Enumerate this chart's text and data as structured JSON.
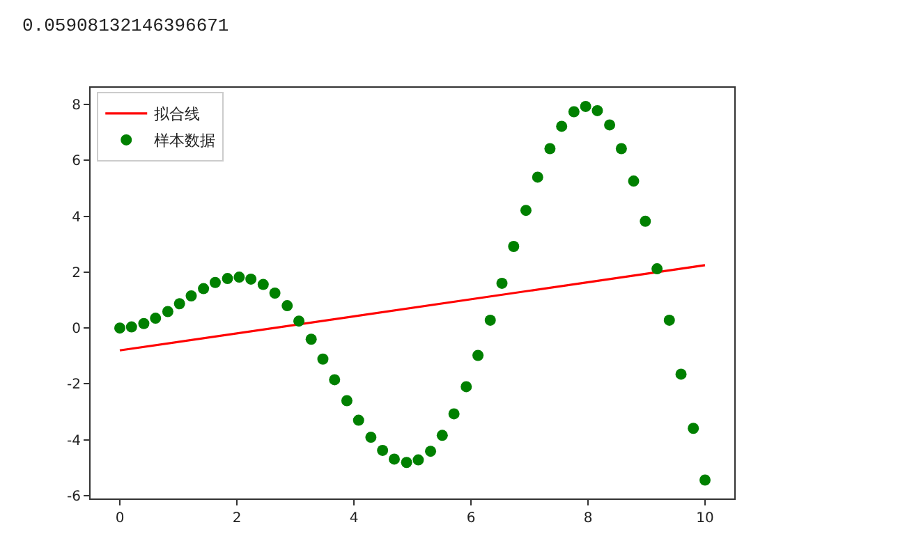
{
  "chart_data": {
    "type": "scatter",
    "annotations": [
      "0.05908132146396671"
    ],
    "xlim": [
      -0.5,
      10.5
    ],
    "ylim": [
      -6.1,
      8.6
    ],
    "xticks": [
      0,
      2,
      4,
      6,
      8,
      10
    ],
    "yticks": [
      -6,
      -4,
      -2,
      0,
      2,
      4,
      6,
      8
    ],
    "legend": "top left",
    "series": [
      {
        "name": "拟合线",
        "type": "line",
        "color": "#ff0000",
        "marker": "none",
        "line_style": "solid",
        "x": [
          0,
          10
        ],
        "values": [
          -0.8,
          2.25
        ]
      },
      {
        "name": "样本数据",
        "color": "#008000",
        "marker": "circle",
        "x": [
          0,
          0.2,
          0.41,
          0.61,
          0.82,
          1.02,
          1.22,
          1.43,
          1.63,
          1.84,
          2.04,
          2.24,
          2.45,
          2.65,
          2.86,
          3.06,
          3.27,
          3.47,
          3.67,
          3.88,
          4.08,
          4.29,
          4.49,
          4.69,
          4.9,
          5.1,
          5.31,
          5.51,
          5.71,
          5.92,
          6.12,
          6.33,
          6.53,
          6.73,
          6.94,
          7.14,
          7.35,
          7.55,
          7.76,
          7.96,
          8.16,
          8.37,
          8.57,
          8.78,
          8.98,
          9.18,
          9.39,
          9.59,
          9.8,
          10
        ],
        "values": [
          0,
          0.04,
          0.16,
          0.35,
          0.59,
          0.87,
          1.15,
          1.41,
          1.63,
          1.77,
          1.82,
          1.75,
          1.56,
          1.25,
          0.8,
          0.25,
          -0.4,
          -1.11,
          -1.85,
          -2.6,
          -3.3,
          -3.91,
          -4.38,
          -4.69,
          -4.81,
          -4.72,
          -4.41,
          -3.84,
          -3.07,
          -2.1,
          -0.98,
          0.28,
          1.6,
          2.92,
          4.21,
          5.4,
          6.42,
          7.22,
          7.74,
          7.93,
          7.78,
          7.27,
          6.42,
          5.26,
          3.82,
          2.12,
          0.28,
          -1.65,
          -3.59,
          -5.44
        ]
      }
    ]
  }
}
